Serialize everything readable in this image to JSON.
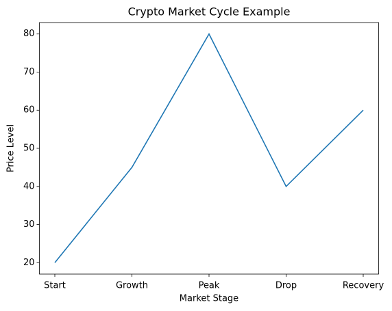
{
  "chart_data": {
    "type": "line",
    "title": "Crypto Market Cycle Example",
    "x_label": "Market Stage",
    "y_label": "Price Level",
    "categories": [
      "Start",
      "Growth",
      "Peak",
      "Drop",
      "Recovery"
    ],
    "values": [
      20,
      45,
      80,
      40,
      60
    ],
    "color": "#1f77b4",
    "ylim": [
      17,
      83
    ],
    "yticks": [
      20,
      30,
      40,
      50,
      60,
      70,
      80
    ],
    "grid": false
  }
}
